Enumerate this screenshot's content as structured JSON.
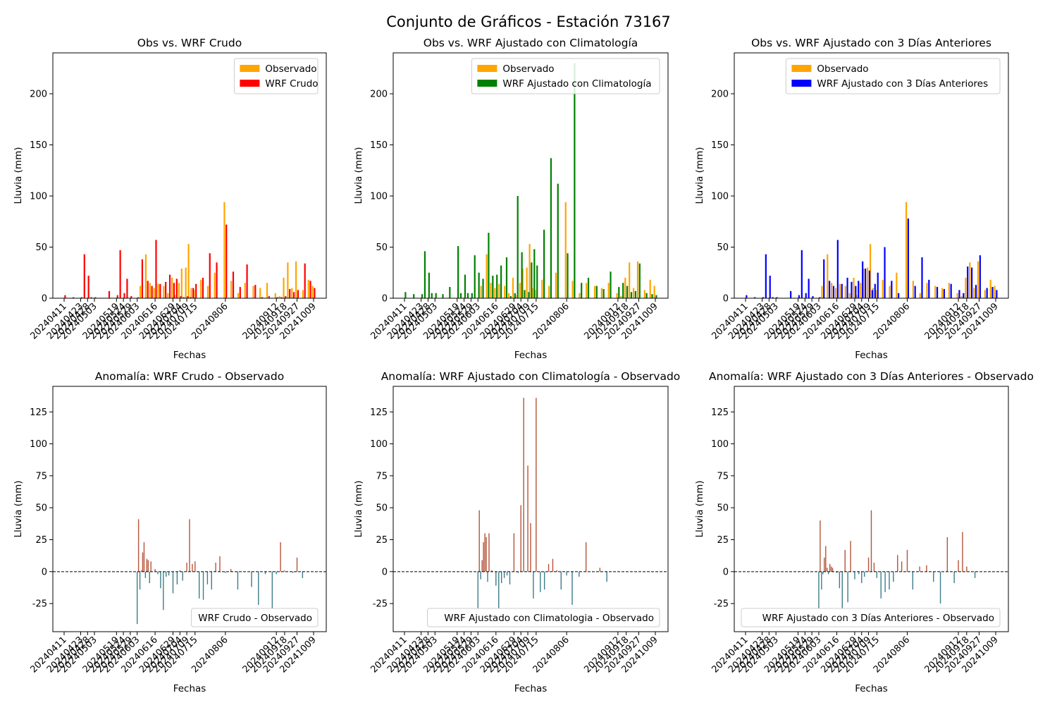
{
  "suptitle": "Conjunto de Gráficos - Estación 73167",
  "date_ticks": [
    "20240411",
    "20240423",
    "20240428",
    "20240503",
    "20240519",
    "20240524",
    "20240529",
    "20240603",
    "20240616",
    "20240629",
    "20240704",
    "20240709",
    "20240715",
    "20240806",
    "20240912",
    "20240918",
    "20240927",
    "20241009"
  ],
  "colors": {
    "observado": "#ffa500",
    "wrf_crudo": "#ff0000",
    "wrf_clim": "#008000",
    "wrf_3dias": "#0000ff",
    "anom_pos": "#b5543a",
    "anom_neg": "#3d7c8a"
  },
  "chart_data": [
    {
      "type": "bar",
      "title": "Obs vs. WRF Crudo",
      "xlabel": "Fechas",
      "ylabel": "Lluvia (mm)",
      "ylim": [
        0,
        240
      ],
      "yticks": [
        0,
        50,
        100,
        150,
        200
      ],
      "legend_position": "top-right",
      "x": [
        "20240411",
        "20240417",
        "20240423",
        "20240425",
        "20240428",
        "20240430",
        "20240503",
        "20240508",
        "20240513",
        "20240519",
        "20240521",
        "20240524",
        "20240526",
        "20240529",
        "20240531",
        "20240603",
        "20240606",
        "20240610",
        "20240613",
        "20240616",
        "20240619",
        "20240623",
        "20240626",
        "20240629",
        "20240701",
        "20240704",
        "20240706",
        "20240709",
        "20240711",
        "20240713",
        "20240715",
        "20240720",
        "20240725",
        "20240730",
        "20240806",
        "20240811",
        "20240816",
        "20240821",
        "20240827",
        "20240901",
        "20240906",
        "20240912",
        "20240915",
        "20240918",
        "20240921",
        "20240924",
        "20240927",
        "20241002",
        "20241006",
        "20241009"
      ],
      "series": [
        {
          "name": "Observado",
          "color_key": "observado",
          "values": [
            0,
            0,
            0,
            0,
            0,
            0,
            0,
            0,
            0,
            0,
            0,
            0,
            0,
            0,
            0,
            0,
            12,
            43,
            15,
            10,
            14,
            12,
            5,
            20,
            3,
            15,
            29,
            30,
            53,
            10,
            8,
            18,
            12,
            25,
            94,
            17,
            5,
            15,
            12,
            10,
            15,
            5,
            2,
            20,
            35,
            10,
            36,
            8,
            18,
            12
          ]
        },
        {
          "name": "WRF Crudo",
          "color_key": "wrf_crudo",
          "values": [
            3,
            1,
            1,
            43,
            22,
            1,
            1,
            0,
            7,
            3,
            47,
            5,
            19,
            2,
            0,
            1,
            38,
            17,
            12,
            57,
            14,
            16,
            23,
            15,
            19,
            2,
            1,
            2,
            1,
            10,
            14,
            20,
            44,
            35,
            72,
            26,
            11,
            33,
            13,
            1,
            2,
            1,
            1,
            2,
            9,
            6,
            8,
            34,
            17,
            10
          ]
        }
      ]
    },
    {
      "type": "bar",
      "title": "Obs vs. WRF Ajustado con Climatología",
      "xlabel": "Fechas",
      "ylabel": "Lluvia (mm)",
      "ylim": [
        0,
        240
      ],
      "yticks": [
        0,
        50,
        100,
        150,
        200
      ],
      "legend_position": "top-right",
      "x": [
        "20240411",
        "20240417",
        "20240423",
        "20240425",
        "20240428",
        "20240430",
        "20240503",
        "20240508",
        "20240513",
        "20240519",
        "20240521",
        "20240524",
        "20240526",
        "20240529",
        "20240531",
        "20240603",
        "20240606",
        "20240610",
        "20240613",
        "20240616",
        "20240619",
        "20240623",
        "20240626",
        "20240629",
        "20240701",
        "20240704",
        "20240706",
        "20240709",
        "20240711",
        "20240713",
        "20240715",
        "20240720",
        "20240725",
        "20240730",
        "20240806",
        "20240811",
        "20240816",
        "20240821",
        "20240827",
        "20240901",
        "20240906",
        "20240912",
        "20240915",
        "20240918",
        "20240921",
        "20240924",
        "20240927",
        "20241002",
        "20241006",
        "20241009"
      ],
      "series": [
        {
          "name": "Observado",
          "color_key": "observado",
          "values": [
            0,
            0,
            0,
            0,
            0,
            0,
            0,
            0,
            0,
            0,
            0,
            0,
            0,
            0,
            0,
            0,
            12,
            43,
            15,
            10,
            14,
            12,
            5,
            20,
            3,
            15,
            29,
            30,
            53,
            10,
            8,
            18,
            12,
            25,
            94,
            17,
            5,
            15,
            12,
            10,
            15,
            5,
            2,
            20,
            35,
            10,
            36,
            8,
            18,
            12
          ]
        },
        {
          "name": "WRF Ajustado con Climatología",
          "color_key": "wrf_clim",
          "values": [
            6,
            4,
            4,
            46,
            25,
            5,
            5,
            4,
            11,
            51,
            5,
            23,
            5,
            5,
            42,
            25,
            19,
            64,
            22,
            23,
            32,
            40,
            2,
            5,
            100,
            45,
            8,
            6,
            35,
            48,
            32,
            67,
            137,
            112,
            44,
            230,
            15,
            20,
            12,
            9,
            26,
            11,
            15,
            12,
            6,
            7,
            34,
            5,
            4,
            3
          ]
        }
      ]
    },
    {
      "type": "bar",
      "title": "Obs vs. WRF Ajustado con 3 Días Anteriores",
      "xlabel": "Fechas",
      "ylabel": "Lluvia (mm)",
      "ylim": [
        0,
        240
      ],
      "yticks": [
        0,
        50,
        100,
        150,
        200
      ],
      "legend_position": "top-right",
      "x": [
        "20240411",
        "20240417",
        "20240423",
        "20240425",
        "20240428",
        "20240430",
        "20240503",
        "20240508",
        "20240513",
        "20240519",
        "20240521",
        "20240524",
        "20240526",
        "20240529",
        "20240531",
        "20240603",
        "20240606",
        "20240610",
        "20240613",
        "20240616",
        "20240619",
        "20240623",
        "20240626",
        "20240629",
        "20240701",
        "20240704",
        "20240706",
        "20240709",
        "20240711",
        "20240713",
        "20240715",
        "20240720",
        "20240725",
        "20240730",
        "20240806",
        "20240811",
        "20240816",
        "20240821",
        "20240827",
        "20240901",
        "20240906",
        "20240912",
        "20240915",
        "20240918",
        "20240921",
        "20240924",
        "20240927",
        "20241002",
        "20241006",
        "20241009"
      ],
      "series": [
        {
          "name": "Observado",
          "color_key": "observado",
          "values": [
            0,
            0,
            0,
            0,
            0,
            0,
            0,
            0,
            0,
            0,
            0,
            0,
            0,
            0,
            0,
            0,
            12,
            43,
            15,
            10,
            14,
            12,
            5,
            20,
            3,
            15,
            29,
            30,
            53,
            10,
            8,
            18,
            12,
            25,
            94,
            17,
            5,
            15,
            12,
            10,
            15,
            5,
            2,
            20,
            35,
            10,
            36,
            8,
            18,
            12
          ]
        },
        {
          "name": "WRF Ajustado con 3 Días Anteriores",
          "color_key": "wrf_3dias",
          "values": [
            3,
            1,
            1,
            43,
            22,
            1,
            1,
            0,
            7,
            3,
            47,
            5,
            19,
            2,
            0,
            1,
            38,
            17,
            12,
            57,
            14,
            20,
            16,
            12,
            17,
            36,
            29,
            27,
            8,
            14,
            25,
            50,
            17,
            5,
            78,
            12,
            40,
            18,
            11,
            9,
            14,
            8,
            5,
            31,
            30,
            13,
            42,
            10,
            11,
            8
          ]
        }
      ]
    },
    {
      "type": "bar",
      "title": "Anomalía: WRF Crudo - Observado",
      "xlabel": "Fechas",
      "ylabel": "Lluvia (mm)",
      "ylim": [
        -47,
        145
      ],
      "yticks": [
        -25,
        0,
        25,
        50,
        75,
        100,
        125
      ],
      "legend_position": "bottom-right",
      "legend_label": "WRF Crudo - Observado",
      "zero_line": "dashed",
      "x": [
        "20240603",
        "20240604",
        "20240605",
        "20240606",
        "20240607",
        "20240608",
        "20240609",
        "20240610",
        "20240611",
        "20240612",
        "20240613",
        "20240616",
        "20240618",
        "20240620",
        "20240622",
        "20240624",
        "20240626",
        "20240629",
        "20240702",
        "20240704",
        "20240706",
        "20240709",
        "20240711",
        "20240713",
        "20240715",
        "20240718",
        "20240721",
        "20240724",
        "20240727",
        "20240730",
        "20240802",
        "20240806",
        "20240810",
        "20240815",
        "20240820",
        "20240825",
        "20240830",
        "20240904",
        "20240909",
        "20240912",
        "20240915",
        "20240918",
        "20240921",
        "20240924",
        "20240927",
        "20241001",
        "20241005",
        "20241009"
      ],
      "values": [
        -41,
        41,
        -14,
        1,
        15,
        23,
        -5,
        10,
        9,
        -9,
        8,
        2,
        -2,
        -13,
        -30,
        -4,
        -3,
        -17,
        -10,
        1,
        -7,
        7,
        41,
        6,
        8,
        -21,
        -22,
        -10,
        -14,
        7,
        12,
        -1,
        2,
        -14,
        0,
        -12,
        -26,
        -2,
        -29,
        -2,
        23,
        1,
        0,
        -1,
        11,
        -5,
        0,
        0
      ]
    },
    {
      "type": "bar",
      "title": "Anomalía: WRF Ajustado con Climatología - Observado",
      "xlabel": "Fechas",
      "ylabel": "Lluvia (mm)",
      "ylim": [
        -47,
        145
      ],
      "yticks": [
        -25,
        0,
        25,
        50,
        75,
        100,
        125
      ],
      "legend_position": "bottom-right",
      "legend_label": "WRF Ajustado con Climatologia - Observado",
      "zero_line": "dashed",
      "x": [
        "20240603",
        "20240604",
        "20240605",
        "20240606",
        "20240607",
        "20240608",
        "20240609",
        "20240610",
        "20240611",
        "20240612",
        "20240613",
        "20240616",
        "20240618",
        "20240620",
        "20240622",
        "20240624",
        "20240626",
        "20240629",
        "20240702",
        "20240704",
        "20240706",
        "20240709",
        "20240711",
        "20240713",
        "20240715",
        "20240718",
        "20240721",
        "20240724",
        "20240727",
        "20240730",
        "20240802",
        "20240806",
        "20240810",
        "20240815",
        "20240820",
        "20240825",
        "20240830",
        "20240904",
        "20240909",
        "20240912",
        "20240915",
        "20240918",
        "20240921",
        "20240924",
        "20240927",
        "20241001",
        "20241005",
        "20241009"
      ],
      "values": [
        -29,
        48,
        -6,
        9,
        23,
        30,
        27,
        -8,
        30,
        0,
        1,
        -11,
        -29,
        -9,
        -5,
        -3,
        -10,
        30,
        -1,
        52,
        136,
        83,
        38,
        -21,
        136,
        -16,
        -14,
        6,
        10,
        1,
        -14,
        -3,
        -26,
        -4,
        23,
        0,
        3,
        -8,
        0,
        0,
        0,
        0,
        0,
        0,
        0,
        0,
        0,
        0
      ]
    },
    {
      "type": "bar",
      "title": "Anomalía: WRF Ajustado con 3 Días Anteriores - Observado",
      "xlabel": "Fechas",
      "ylabel": "Lluvia (mm)",
      "ylim": [
        -47,
        145
      ],
      "yticks": [
        -25,
        0,
        25,
        50,
        75,
        100,
        125
      ],
      "legend_position": "bottom-right",
      "legend_label": "WRF Ajustado con 3 Días Anteriores - Observado",
      "zero_line": "dashed",
      "x": [
        "20240603",
        "20240604",
        "20240605",
        "20240606",
        "20240607",
        "20240608",
        "20240609",
        "20240610",
        "20240611",
        "20240612",
        "20240613",
        "20240616",
        "20240618",
        "20240620",
        "20240622",
        "20240624",
        "20240626",
        "20240629",
        "20240702",
        "20240704",
        "20240706",
        "20240709",
        "20240711",
        "20240713",
        "20240715",
        "20240718",
        "20240721",
        "20240724",
        "20240727",
        "20240730",
        "20240802",
        "20240806",
        "20240810",
        "20240815",
        "20240820",
        "20240825",
        "20240830",
        "20240904",
        "20240909",
        "20240912",
        "20240915",
        "20240918",
        "20240921",
        "20240924",
        "20240927",
        "20241001",
        "20241005",
        "20241009"
      ],
      "values": [
        -29,
        40,
        -14,
        -2,
        11,
        20,
        3,
        -2,
        6,
        4,
        3,
        -1,
        -13,
        -29,
        17,
        -24,
        24,
        -6,
        -2,
        -9,
        -4,
        11,
        48,
        7,
        -5,
        -21,
        -16,
        -14,
        -8,
        13,
        8,
        17,
        -14,
        4,
        5,
        -8,
        -25,
        27,
        -9,
        9,
        31,
        4,
        0,
        -5,
        0,
        0,
        0,
        0
      ]
    }
  ]
}
